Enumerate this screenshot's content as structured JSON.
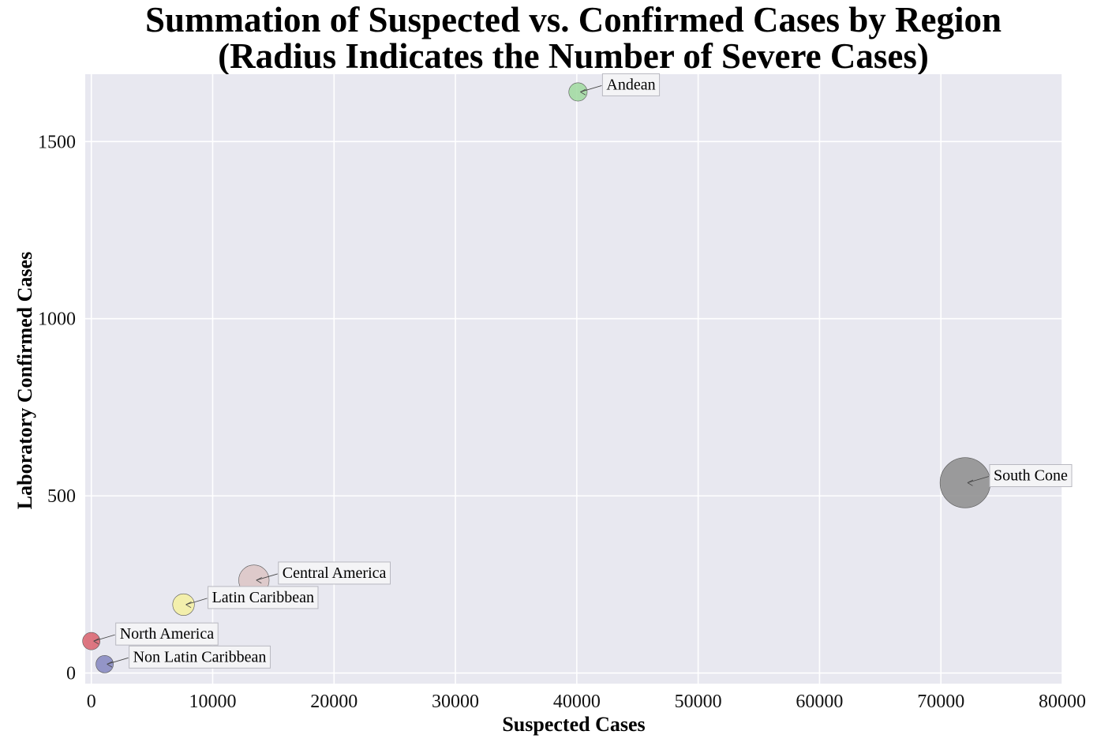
{
  "chart_data": {
    "type": "scatter",
    "title": "Summation of Suspected vs. Confirmed Cases by Region",
    "subtitle": "(Radius Indicates the Number of Severe Cases)",
    "xlabel": "Suspected Cases",
    "ylabel": "Laboratory Confirmed Cases",
    "xlim": [
      -500,
      80000
    ],
    "ylim": [
      -30,
      1690
    ],
    "xticks": [
      0,
      10000,
      20000,
      30000,
      40000,
      50000,
      60000,
      70000,
      80000
    ],
    "yticks": [
      0,
      500,
      1000,
      1500
    ],
    "grid": true,
    "background": "#e8e8f0",
    "points": [
      {
        "name": "Andean",
        "x": 40100,
        "y": 1640,
        "severe": 20,
        "color": "#9fd99f"
      },
      {
        "name": "South Cone",
        "x": 72000,
        "y": 537,
        "severe": 150,
        "color": "#8c8c8c"
      },
      {
        "name": "Central America",
        "x": 13400,
        "y": 262,
        "severe": 55,
        "color": "#dcc4c4"
      },
      {
        "name": "Latin Caribbean",
        "x": 7600,
        "y": 193,
        "severe": 28,
        "color": "#f5f0a0"
      },
      {
        "name": "North America",
        "x": 0,
        "y": 90,
        "severe": 18,
        "color": "#d9606c"
      },
      {
        "name": "Non Latin Caribbean",
        "x": 1100,
        "y": 25,
        "severe": 18,
        "color": "#8486c0"
      }
    ]
  }
}
